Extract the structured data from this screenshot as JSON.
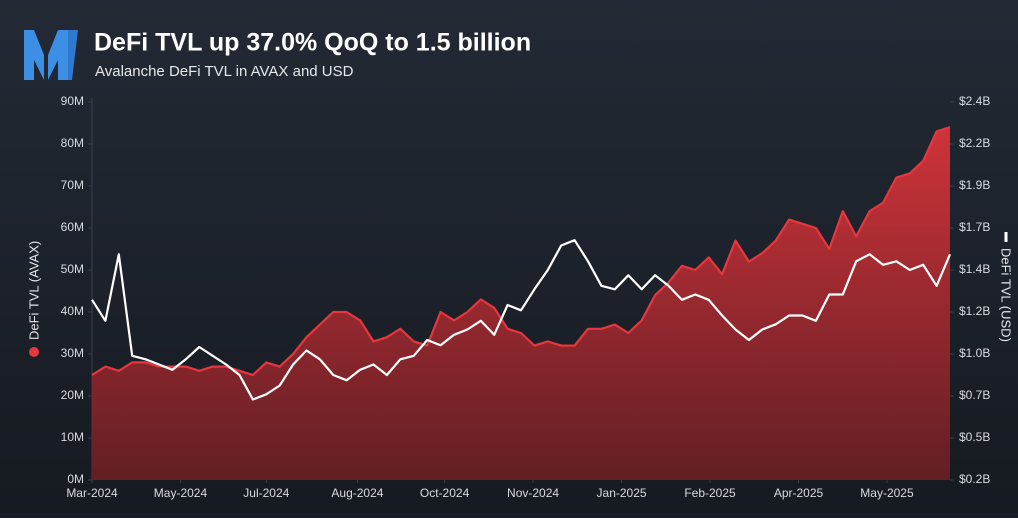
{
  "chart_data": {
    "type": "line",
    "title": "DeFi TVL up 37.0% QoQ to 1.5 billion",
    "subtitle": "Avalanche DeFi TVL in AVAX and USD",
    "y_label": "DeFi TVL (AVAX)",
    "y2_label": "DeFi TVL (USD)",
    "xlim": [
      0,
      64
    ],
    "xticks": [
      {
        "value": 0,
        "label": "Mar-2024"
      },
      {
        "value": 6.6,
        "label": "May-2024"
      },
      {
        "value": 13.0,
        "label": "Jul-2024"
      },
      {
        "value": 19.8,
        "label": "Aug-2024"
      },
      {
        "value": 26.3,
        "label": "Oct-2024"
      },
      {
        "value": 32.9,
        "label": "Nov-2024"
      },
      {
        "value": 39.5,
        "label": "Jan-2025"
      },
      {
        "value": 46.1,
        "label": "Feb-2025"
      },
      {
        "value": 52.7,
        "label": "Apr-2025"
      },
      {
        "value": 59.3,
        "label": "May-2025"
      }
    ],
    "ylim": [
      0,
      90
    ],
    "yticks": [
      {
        "value": 0,
        "label": "0M"
      },
      {
        "value": 10,
        "label": "10M"
      },
      {
        "value": 20,
        "label": "20M"
      },
      {
        "value": 30,
        "label": "30M"
      },
      {
        "value": 40,
        "label": "40M"
      },
      {
        "value": 50,
        "label": "50M"
      },
      {
        "value": 60,
        "label": "60M"
      },
      {
        "value": 70,
        "label": "70M"
      },
      {
        "value": 80,
        "label": "80M"
      },
      {
        "value": 90,
        "label": "90M"
      }
    ],
    "y2lim": [
      0.24,
      2.4
    ],
    "y2ticks": [
      {
        "value": 0.24,
        "label": "$0.2B"
      },
      {
        "value": 0.48,
        "label": "$0.5B"
      },
      {
        "value": 0.72,
        "label": "$0.7B"
      },
      {
        "value": 0.96,
        "label": "$1.0B"
      },
      {
        "value": 1.2,
        "label": "$1.2B"
      },
      {
        "value": 1.44,
        "label": "$1.4B"
      },
      {
        "value": 1.68,
        "label": "$1.7B"
      },
      {
        "value": 1.92,
        "label": "$1.9B"
      },
      {
        "value": 2.16,
        "label": "$2.2B"
      },
      {
        "value": 2.4,
        "label": "$2.4B"
      }
    ],
    "series": [
      {
        "name": "DeFi TVL (AVAX)",
        "color": "#e5373d",
        "fill": "area",
        "values": [
          25,
          27,
          26,
          28,
          28,
          27,
          27,
          27,
          26,
          27,
          27,
          26,
          25,
          28,
          27,
          30,
          34,
          37,
          40,
          40,
          38,
          33,
          34,
          36,
          33,
          32,
          40,
          38,
          40,
          43,
          41,
          36,
          35,
          32,
          33,
          32,
          32,
          36,
          36,
          37,
          35,
          38,
          44,
          47,
          51,
          50,
          53,
          49,
          57,
          52,
          54,
          57,
          62,
          61,
          60,
          55,
          64,
          58,
          64,
          66,
          72,
          73,
          76,
          83,
          84
        ]
      },
      {
        "name": "DeFi TVL (USD)",
        "color": "#ffffff",
        "axis": "y2",
        "values": [
          1.27,
          1.15,
          1.53,
          0.95,
          0.93,
          0.9,
          0.87,
          0.93,
          1.0,
          0.95,
          0.9,
          0.84,
          0.7,
          0.73,
          0.78,
          0.9,
          0.98,
          0.93,
          0.84,
          0.81,
          0.87,
          0.9,
          0.84,
          0.93,
          0.95,
          1.04,
          1.01,
          1.07,
          1.1,
          1.15,
          1.07,
          1.24,
          1.21,
          1.33,
          1.44,
          1.58,
          1.61,
          1.49,
          1.35,
          1.33,
          1.41,
          1.33,
          1.41,
          1.35,
          1.27,
          1.3,
          1.27,
          1.18,
          1.1,
          1.04,
          1.1,
          1.13,
          1.18,
          1.18,
          1.15,
          1.3,
          1.3,
          1.49,
          1.53,
          1.47,
          1.49,
          1.44,
          1.47,
          1.35,
          1.53
        ]
      }
    ]
  }
}
